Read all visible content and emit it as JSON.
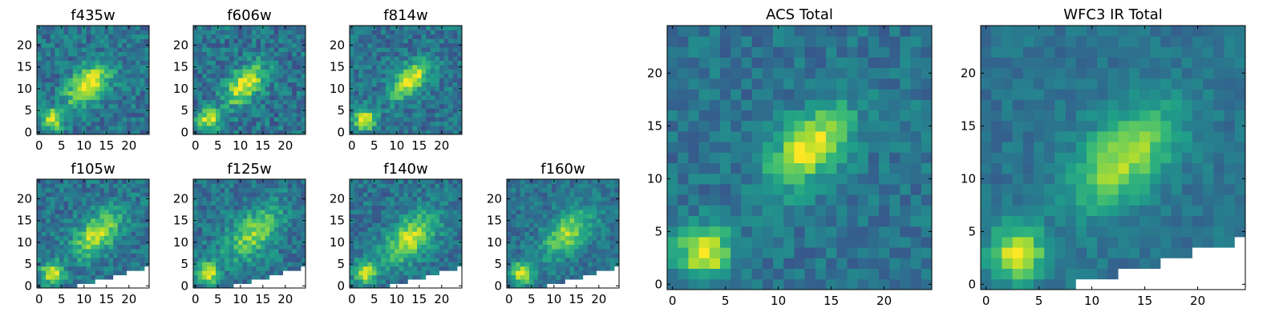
{
  "chart_data": [
    {
      "type": "heatmap",
      "title": "f435w",
      "xticks": [
        "0",
        "5",
        "10",
        "15",
        "20"
      ],
      "yticks": [
        "0",
        "5",
        "10",
        "15",
        "20"
      ],
      "xlim": [
        -0.5,
        24.5
      ],
      "ylim": [
        -0.5,
        24.5
      ],
      "colormap": "viridis",
      "source": {
        "cx": 11,
        "cy": 11,
        "width": 2.4,
        "peak": 1.0
      },
      "noise": 0.3,
      "seed": 11
    },
    {
      "type": "heatmap",
      "title": "f606w",
      "xticks": [
        "0",
        "5",
        "10",
        "15",
        "20"
      ],
      "yticks": [
        "0",
        "5",
        "10",
        "15",
        "20"
      ],
      "xlim": [
        -0.5,
        24.5
      ],
      "ylim": [
        -0.5,
        24.5
      ],
      "colormap": "viridis",
      "source": {
        "cx": 11,
        "cy": 11,
        "width": 2.2,
        "peak": 1.0
      },
      "noise": 0.32,
      "seed": 23
    },
    {
      "type": "heatmap",
      "title": "f814w",
      "xticks": [
        "0",
        "5",
        "10",
        "15",
        "20"
      ],
      "yticks": [
        "0",
        "5",
        "10",
        "15",
        "20"
      ],
      "xlim": [
        -0.5,
        24.5
      ],
      "ylim": [
        -0.5,
        24.5
      ],
      "colormap": "viridis",
      "source": {
        "cx": 13,
        "cy": 12,
        "width": 2.0,
        "peak": 1.0
      },
      "noise": 0.28,
      "seed": 37
    },
    {
      "type": "heatmap",
      "title": "f105w",
      "xticks": [
        "0",
        "5",
        "10",
        "15",
        "20"
      ],
      "yticks": [
        "0",
        "5",
        "10",
        "15",
        "20"
      ],
      "xlim": [
        -0.5,
        24.5
      ],
      "ylim": [
        -0.5,
        24.5
      ],
      "colormap": "viridis",
      "source": {
        "cx": 13,
        "cy": 12,
        "width": 2.6,
        "peak": 0.85
      },
      "noise": 0.28,
      "seed": 41
    },
    {
      "type": "heatmap",
      "title": "f125w",
      "xticks": [
        "0",
        "5",
        "10",
        "15",
        "20"
      ],
      "yticks": [
        "0",
        "5",
        "10",
        "15",
        "20"
      ],
      "xlim": [
        -0.5,
        24.5
      ],
      "ylim": [
        -0.5,
        24.5
      ],
      "colormap": "viridis",
      "source": {
        "cx": 13,
        "cy": 12,
        "width": 3.0,
        "peak": 0.7
      },
      "noise": 0.28,
      "seed": 53
    },
    {
      "type": "heatmap",
      "title": "f140w",
      "xticks": [
        "0",
        "5",
        "10",
        "15",
        "20"
      ],
      "yticks": [
        "0",
        "5",
        "10",
        "15",
        "20"
      ],
      "xlim": [
        -0.5,
        24.5
      ],
      "ylim": [
        -0.5,
        24.5
      ],
      "colormap": "viridis",
      "source": {
        "cx": 13,
        "cy": 11,
        "width": 2.8,
        "peak": 0.85
      },
      "noise": 0.26,
      "seed": 67
    },
    {
      "type": "heatmap",
      "title": "f160w",
      "xticks": [
        "0",
        "5",
        "10",
        "15",
        "20"
      ],
      "yticks": [
        "0",
        "5",
        "10",
        "15",
        "20"
      ],
      "xlim": [
        -0.5,
        24.5
      ],
      "ylim": [
        -0.5,
        24.5
      ],
      "colormap": "viridis",
      "source": {
        "cx": 13,
        "cy": 12,
        "width": 2.6,
        "peak": 0.75
      },
      "noise": 0.24,
      "seed": 79
    },
    {
      "type": "heatmap",
      "title": "ACS Total",
      "xticks": [
        "0",
        "5",
        "10",
        "15",
        "20"
      ],
      "yticks": [
        "0",
        "5",
        "10",
        "15",
        "20"
      ],
      "xlim": [
        -0.5,
        24.5
      ],
      "ylim": [
        -0.5,
        24.5
      ],
      "colormap": "viridis",
      "source": {
        "cx": 13,
        "cy": 13,
        "width": 1.8,
        "peak": 1.0
      },
      "noise": 0.22,
      "seed": 97
    },
    {
      "type": "heatmap",
      "title": "WFC3 IR Total",
      "xticks": [
        "0",
        "5",
        "10",
        "15",
        "20"
      ],
      "yticks": [
        "0",
        "5",
        "10",
        "15",
        "20"
      ],
      "xlim": [
        -0.5,
        24.5
      ],
      "ylim": [
        -0.5,
        24.5
      ],
      "colormap": "viridis",
      "source": {
        "cx": 13,
        "cy": 12,
        "width": 2.4,
        "peak": 0.8
      },
      "noise": 0.16,
      "seed": 113
    }
  ]
}
